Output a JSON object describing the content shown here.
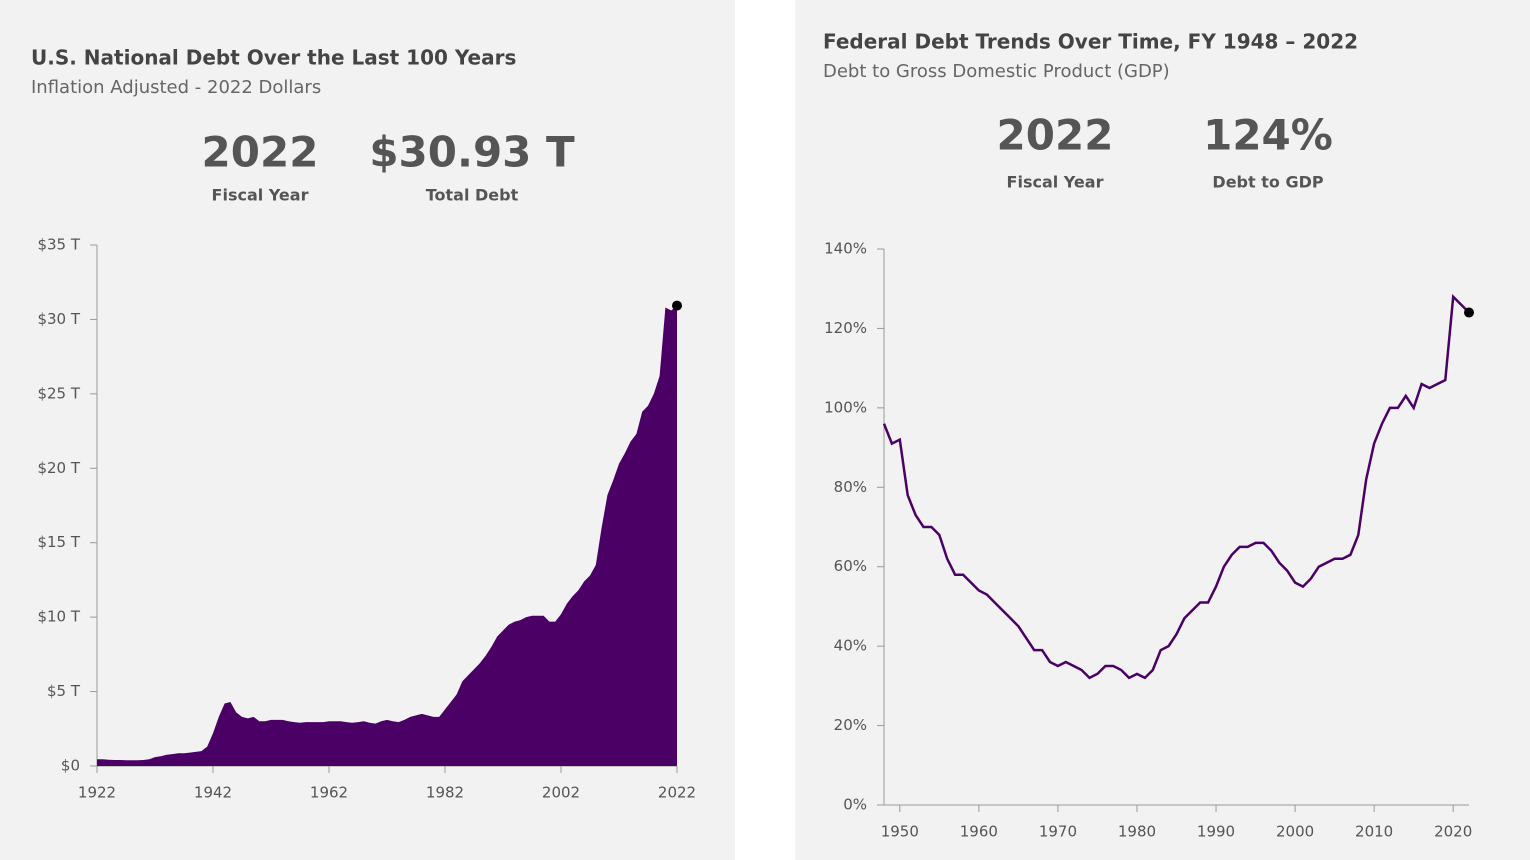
{
  "chart_data": [
    {
      "type": "area",
      "title": "U.S. National Debt Over the Last 100 Years",
      "subtitle": "Inflation Adjusted - 2022 Dollars",
      "stats": [
        {
          "value": "2022",
          "label": "Fiscal Year"
        },
        {
          "value": "$30.93 T",
          "label": "Total Debt"
        }
      ],
      "color": "#4b0066",
      "x": [
        1922,
        1923,
        1924,
        1925,
        1926,
        1927,
        1928,
        1929,
        1930,
        1931,
        1932,
        1933,
        1934,
        1935,
        1936,
        1937,
        1938,
        1939,
        1940,
        1941,
        1942,
        1943,
        1944,
        1945,
        1946,
        1947,
        1948,
        1949,
        1950,
        1951,
        1952,
        1953,
        1954,
        1955,
        1956,
        1957,
        1958,
        1959,
        1960,
        1961,
        1962,
        1963,
        1964,
        1965,
        1966,
        1967,
        1968,
        1969,
        1970,
        1971,
        1972,
        1973,
        1974,
        1975,
        1976,
        1977,
        1978,
        1979,
        1980,
        1981,
        1982,
        1983,
        1984,
        1985,
        1986,
        1987,
        1988,
        1989,
        1990,
        1991,
        1992,
        1993,
        1994,
        1995,
        1996,
        1997,
        1998,
        1999,
        2000,
        2001,
        2002,
        2003,
        2004,
        2005,
        2006,
        2007,
        2008,
        2009,
        2010,
        2011,
        2012,
        2013,
        2014,
        2015,
        2016,
        2017,
        2018,
        2019,
        2020,
        2021,
        2022
      ],
      "values": [
        0.45,
        0.45,
        0.42,
        0.4,
        0.4,
        0.38,
        0.38,
        0.38,
        0.4,
        0.45,
        0.6,
        0.65,
        0.75,
        0.8,
        0.85,
        0.85,
        0.9,
        0.95,
        1.0,
        1.3,
        2.2,
        3.3,
        4.2,
        4.3,
        3.6,
        3.3,
        3.2,
        3.3,
        3.0,
        3.0,
        3.1,
        3.1,
        3.1,
        3.0,
        2.95,
        2.9,
        2.95,
        2.95,
        2.95,
        2.95,
        3.0,
        3.0,
        3.0,
        2.95,
        2.9,
        2.95,
        3.0,
        2.9,
        2.85,
        3.0,
        3.1,
        3.0,
        2.95,
        3.1,
        3.3,
        3.4,
        3.5,
        3.4,
        3.3,
        3.3,
        3.8,
        4.3,
        4.8,
        5.7,
        6.1,
        6.5,
        6.9,
        7.4,
        8.0,
        8.7,
        9.1,
        9.5,
        9.7,
        9.8,
        10.0,
        10.1,
        10.1,
        10.1,
        9.7,
        9.7,
        10.2,
        10.9,
        11.4,
        11.8,
        12.4,
        12.8,
        13.5,
        16.0,
        18.2,
        19.2,
        20.3,
        21.0,
        21.8,
        22.3,
        23.8,
        24.2,
        25.0,
        26.2,
        30.8,
        30.6,
        30.93
      ],
      "xlim": [
        1922,
        2022
      ],
      "xticks": [
        1922,
        1942,
        1962,
        1982,
        2002,
        2022
      ],
      "ylim": [
        0,
        35
      ],
      "yticks": [
        {
          "value": 0,
          "label": "$0"
        },
        {
          "value": 5,
          "label": "$5 T"
        },
        {
          "value": 10,
          "label": "$10 T"
        },
        {
          "value": 15,
          "label": "$15 T"
        },
        {
          "value": 20,
          "label": "$20 T"
        },
        {
          "value": 25,
          "label": "$25 T"
        },
        {
          "value": 30,
          "label": "$30 T"
        },
        {
          "value": 35,
          "label": "$35 T"
        }
      ]
    },
    {
      "type": "line",
      "title": "Federal Debt Trends Over Time, FY 1948 – 2022",
      "subtitle": "Debt to Gross Domestic Product (GDP)",
      "stats": [
        {
          "value": "2022",
          "label": "Fiscal Year"
        },
        {
          "value": "124%",
          "label": "Debt to GDP"
        }
      ],
      "color": "#4b0066",
      "x": [
        1948,
        1949,
        1950,
        1951,
        1952,
        1953,
        1954,
        1955,
        1956,
        1957,
        1958,
        1959,
        1960,
        1961,
        1962,
        1963,
        1964,
        1965,
        1966,
        1967,
        1968,
        1969,
        1970,
        1971,
        1972,
        1973,
        1974,
        1975,
        1976,
        1977,
        1978,
        1979,
        1980,
        1981,
        1982,
        1983,
        1984,
        1985,
        1986,
        1987,
        1988,
        1989,
        1990,
        1991,
        1992,
        1993,
        1994,
        1995,
        1996,
        1997,
        1998,
        1999,
        2000,
        2001,
        2002,
        2003,
        2004,
        2005,
        2006,
        2007,
        2008,
        2009,
        2010,
        2011,
        2012,
        2013,
        2014,
        2015,
        2016,
        2017,
        2018,
        2019,
        2020,
        2021,
        2022
      ],
      "values": [
        96,
        91,
        92,
        78,
        73,
        70,
        70,
        68,
        62,
        58,
        58,
        56,
        54,
        53,
        51,
        49,
        47,
        45,
        42,
        39,
        39,
        36,
        35,
        36,
        35,
        34,
        32,
        33,
        35,
        35,
        34,
        32,
        33,
        32,
        34,
        39,
        40,
        43,
        47,
        49,
        51,
        51,
        55,
        60,
        63,
        65,
        65,
        66,
        66,
        64,
        61,
        59,
        56,
        55,
        57,
        60,
        61,
        62,
        62,
        63,
        68,
        82,
        91,
        96,
        100,
        100,
        103,
        100,
        106,
        105,
        106,
        107,
        128,
        126,
        124
      ],
      "xlim": [
        1948,
        2022
      ],
      "xticks": [
        1950,
        1960,
        1970,
        1980,
        1990,
        2000,
        2010,
        2020
      ],
      "ylim": [
        0,
        140
      ],
      "yticks": [
        {
          "value": 0,
          "label": "0%"
        },
        {
          "value": 20,
          "label": "20%"
        },
        {
          "value": 40,
          "label": "40%"
        },
        {
          "value": 60,
          "label": "60%"
        },
        {
          "value": 80,
          "label": "80%"
        },
        {
          "value": 100,
          "label": "100%"
        },
        {
          "value": 120,
          "label": "120%"
        },
        {
          "value": 140,
          "label": "140%"
        }
      ]
    }
  ]
}
